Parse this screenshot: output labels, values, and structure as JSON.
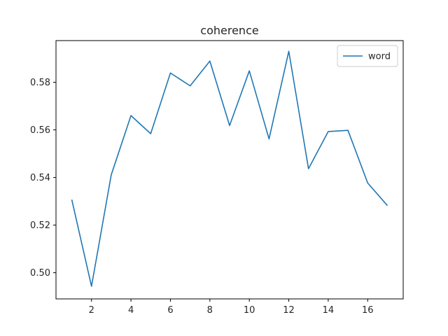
{
  "chart_data": {
    "type": "line",
    "title": "coherence",
    "xlabel": "",
    "ylabel": "",
    "xlim": [
      0.2,
      17.8
    ],
    "ylim": [
      0.489,
      0.5975
    ],
    "xticks": [
      2,
      4,
      6,
      8,
      10,
      12,
      14,
      16
    ],
    "yticks": [
      0.5,
      0.52,
      0.54,
      0.56,
      0.58
    ],
    "ytick_labels": [
      "0.50",
      "0.52",
      "0.54",
      "0.56",
      "0.58"
    ],
    "grid": false,
    "legend_position": "top-right",
    "series": [
      {
        "name": "word",
        "color": "#1f77b4",
        "x": [
          1,
          2,
          3,
          4,
          5,
          6,
          7,
          8,
          9,
          10,
          11,
          12,
          13,
          14,
          15,
          16,
          17
        ],
        "y": [
          0.5307,
          0.4943,
          0.5411,
          0.566,
          0.5584,
          0.5839,
          0.5785,
          0.5889,
          0.5618,
          0.5848,
          0.5562,
          0.593,
          0.5437,
          0.5593,
          0.5598,
          0.5377,
          0.5282
        ]
      }
    ]
  }
}
